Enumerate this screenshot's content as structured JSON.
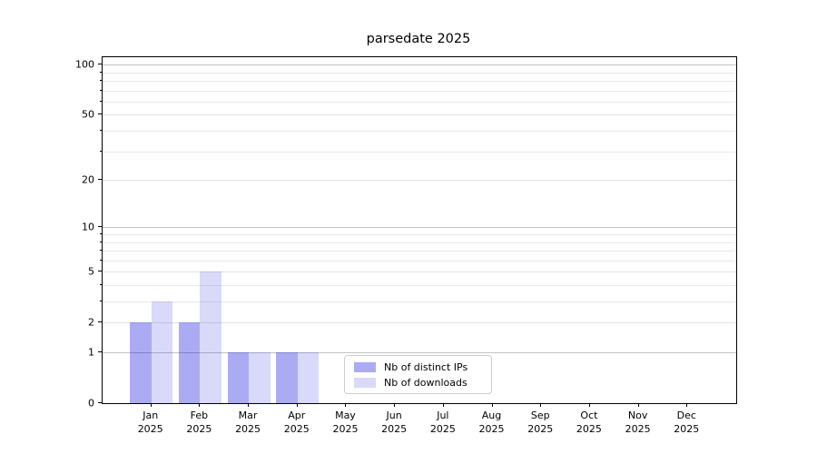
{
  "title": "parsedate 2025",
  "legend": {
    "items": [
      {
        "label": "Nb of distinct IPs",
        "color": "rgba(0,0,221,0.33)"
      },
      {
        "label": "Nb of downloads",
        "color": "rgba(0,0,221,0.15)"
      }
    ]
  },
  "chart_data": {
    "type": "bar",
    "title": "parsedate 2025",
    "categories": [
      "Jan",
      "Feb",
      "Mar",
      "Apr",
      "May",
      "Jun",
      "Jul",
      "Aug",
      "Sep",
      "Oct",
      "Nov",
      "Dec"
    ],
    "year": "2025",
    "series": [
      {
        "name": "Nb of distinct IPs",
        "color": "rgba(0,0,221,0.33)",
        "values": [
          2,
          2,
          1,
          1,
          0,
          0,
          0,
          0,
          0,
          0,
          0,
          0
        ]
      },
      {
        "name": "Nb of downloads",
        "color": "rgba(0,0,221,0.15)",
        "values": [
          3,
          5,
          1,
          1,
          0,
          0,
          0,
          0,
          0,
          0,
          0,
          0
        ]
      }
    ],
    "xlabel": "",
    "ylabel": "",
    "yscale": "log1p",
    "ylim": [
      0,
      110.8
    ],
    "yticks": [
      0,
      1,
      2,
      5,
      10,
      20,
      50,
      100
    ],
    "major_decades": [
      1,
      10,
      100
    ],
    "minor_yticks": [
      3,
      4,
      6,
      7,
      8,
      9,
      30,
      40,
      60,
      70,
      80,
      90
    ],
    "grid": "horizontal",
    "legend_position": "lower center"
  }
}
